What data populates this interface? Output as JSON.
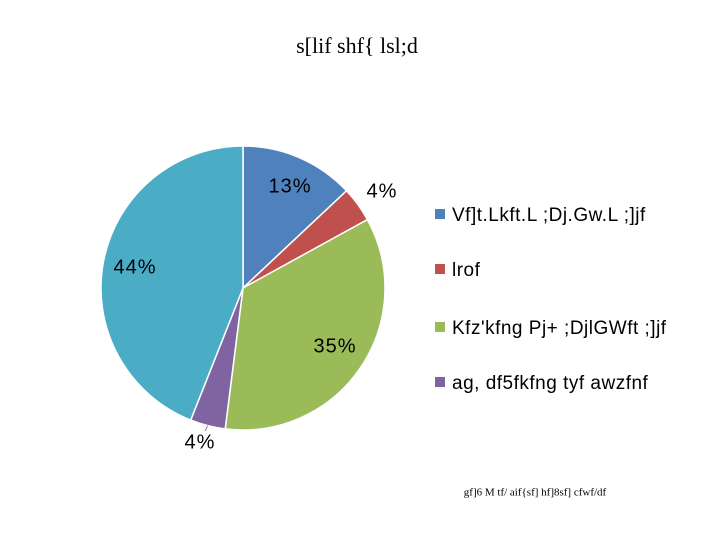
{
  "chart_data": {
    "type": "pie",
    "title": "s[lif shf{ lsl;d",
    "categories": [
      "Vf]t.Lkft.L ;Dj.Gw.L ;]jf",
      "lrof",
      "Kfz'kfng Pj+ ;DjlGWft ;]jf",
      "ag, df5fkfng tyf awzfnf",
      null
    ],
    "values": [
      13,
      4,
      35,
      4,
      44
    ],
    "value_labels": [
      "13%",
      "4%",
      "35%",
      "4%",
      "44%"
    ],
    "colors": [
      "#4f81bd",
      "#c0504d",
      "#9bbb59",
      "#8064a2",
      "#4bacc6"
    ],
    "legend": "right",
    "note": "gf]6 M tf/ aif{sf] hf]8sf] cfwf/df"
  }
}
